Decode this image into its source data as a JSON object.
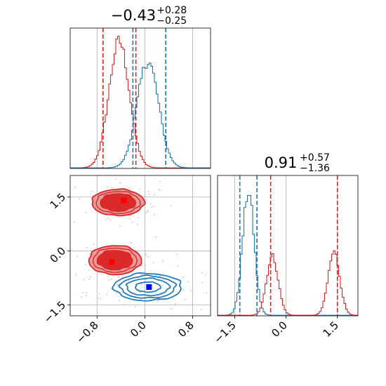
{
  "chart_data": {
    "type": "corner",
    "colors": {
      "red": "#d62728",
      "blue": "#1f77b4",
      "grid": "#b0b0b0",
      "red_fill_light": "#eb9a9a",
      "red_fill_dark": "#dc2a2a",
      "marker_red": "#ff0000",
      "marker_blue": "#0000ff"
    },
    "panels": [
      {
        "id": "hist_param1",
        "type": "histogram",
        "title": {
          "value": "−0.43",
          "sup": "+0.28",
          "sub": "−0.25"
        },
        "xlim": [
          -1.25,
          1.1
        ],
        "grid": true,
        "series": [
          {
            "name": "",
            "color": "red",
            "mean": -0.43,
            "sd": 0.17,
            "height": 0.9
          },
          {
            "name": "",
            "color": "blue",
            "mean": 0.05,
            "sd": 0.18,
            "height": 0.76
          }
        ],
        "vlines": [
          {
            "x": -0.7,
            "color": "red"
          },
          {
            "x": -0.15,
            "color": "red"
          },
          {
            "x": -0.2,
            "color": "blue"
          },
          {
            "x": 0.35,
            "color": "blue"
          }
        ]
      },
      {
        "id": "hist_param2",
        "type": "histogram",
        "title": {
          "value": "0.91",
          "sup": "+0.57",
          "sub": "−1.36"
        },
        "xlim": [
          -2.0,
          2.1
        ],
        "grid": true,
        "series": [
          {
            "name": "",
            "color": "blue",
            "mean": -1.1,
            "sd": 0.17,
            "height": 0.88
          },
          {
            "name": "",
            "color": "red",
            "mean": -0.4,
            "sd": 0.17,
            "height": 0.42,
            "mix": [
              {
                "mean": -0.4,
                "sd": 0.17,
                "height": 0.42
              },
              {
                "mean": 1.4,
                "sd": 0.17,
                "height": 0.45
              }
            ]
          }
        ],
        "vlines": [
          {
            "x": -1.35,
            "color": "blue"
          },
          {
            "x": -0.85,
            "color": "blue"
          },
          {
            "x": -0.45,
            "color": "red"
          },
          {
            "x": 1.5,
            "color": "red"
          }
        ],
        "xticks": [
          "−1.5",
          "0.0",
          "1.5"
        ],
        "xtick_values": [
          -1.5,
          0.0,
          1.5
        ]
      },
      {
        "id": "joint",
        "type": "contour",
        "xlim": [
          -1.25,
          1.1
        ],
        "ylim": [
          -1.8,
          2.1
        ],
        "grid": true,
        "xticks": [
          "−0.8",
          "0.0",
          "0.8"
        ],
        "xtick_values": [
          -0.8,
          0.0,
          0.8
        ],
        "yticks": [
          "1.5",
          "0.0",
          "−1.5"
        ],
        "ytick_values": [
          1.5,
          0.0,
          -1.5
        ],
        "red_modes": [
          {
            "x": -0.45,
            "y": 1.35,
            "sx": 0.36,
            "sy": 0.3
          },
          {
            "x": -0.5,
            "y": -0.25,
            "sx": 0.36,
            "sy": 0.33
          }
        ],
        "blue_mode": {
          "x": 0.05,
          "y": -1.0,
          "sx": 0.42,
          "sy": 0.28
        },
        "markers": [
          {
            "x": -0.35,
            "y": 1.4,
            "color": "red"
          },
          {
            "x": -0.55,
            "y": -0.3,
            "color": "red"
          },
          {
            "x": 0.07,
            "y": -1.0,
            "color": "blue"
          }
        ]
      }
    ]
  }
}
